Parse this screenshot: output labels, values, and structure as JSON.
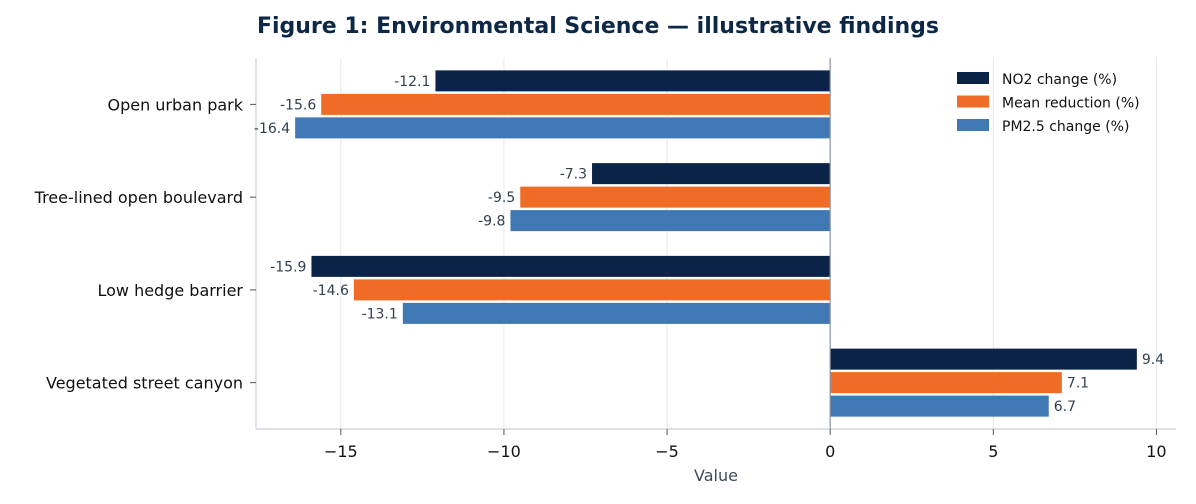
{
  "chart_data": {
    "type": "bar",
    "orientation": "horizontal",
    "title": "Figure 1: Environmental Science — illustrative findings",
    "xlabel": "Value",
    "ylabel": "",
    "xlim": [
      -17.6,
      10.6
    ],
    "xticks": [
      -15,
      -10,
      -5,
      0,
      5,
      10
    ],
    "xtick_labels": [
      "−15",
      "−10",
      "−5",
      "0",
      "5",
      "10"
    ],
    "grid": "vertical",
    "legend_position": "top-right",
    "categories": [
      "Open urban park",
      "Tree-lined open boulevard",
      "Low hedge barrier",
      "Vegetated street canyon"
    ],
    "series": [
      {
        "name": "NO2 change (%)",
        "color": "#0b2347",
        "values": [
          -12.1,
          -7.3,
          -15.9,
          9.4
        ],
        "labels": [
          "-12.1",
          "-7.3",
          "-15.9",
          "9.4"
        ]
      },
      {
        "name": "Mean reduction (%)",
        "color": "#f06b26",
        "values": [
          -15.6,
          -9.5,
          -14.6,
          7.1
        ],
        "labels": [
          "-15.6",
          "-9.5",
          "-14.6",
          "7.1"
        ]
      },
      {
        "name": "PM2.5 change (%)",
        "color": "#3f78b5",
        "values": [
          -16.4,
          -9.8,
          -13.1,
          6.7
        ],
        "labels": [
          "-16.4",
          "-9.8",
          "-13.1",
          "6.7"
        ]
      }
    ]
  }
}
